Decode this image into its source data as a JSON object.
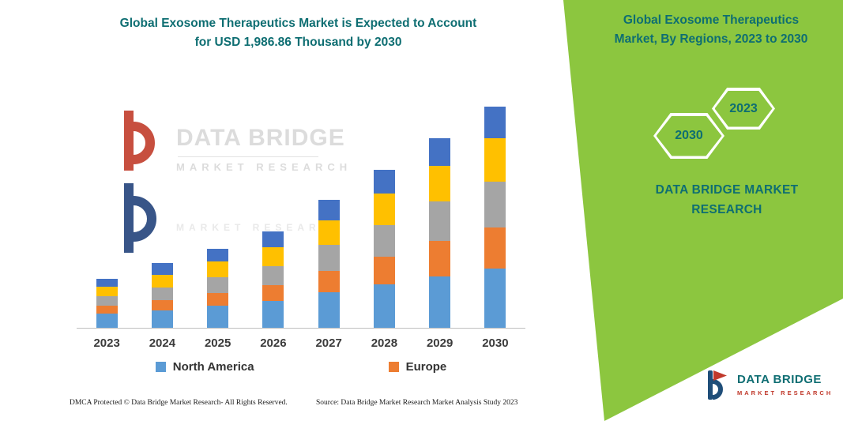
{
  "left_header": {
    "line1": "Global Exosome Therapeutics Market is Expected to Account",
    "line2": "for USD 1,986.86 Thousand by 2030"
  },
  "right_panel": {
    "title_line1": "Global Exosome Therapeutics",
    "title_line2": "Market, By Regions, 2023 to 2030",
    "hexagon_back_year": "2030",
    "hexagon_front_year": "2023",
    "brand_line1": "DATA BRIDGE MARKET",
    "brand_line2": "RESEARCH",
    "bg_color": "#8CC63F",
    "text_color": "#0E6E72"
  },
  "watermark": {
    "brand": "DATA BRIDGE",
    "sub": "MARKET RESEARCH",
    "sub2": "MARKET RESEARCH"
  },
  "chart_data": {
    "type": "bar",
    "stacked": true,
    "title": "Global Exosome Therapeutics Market is Expected to Account for USD 1,986.86 Thousand by 2030",
    "xlabel": "",
    "ylabel": "",
    "y_axis_labels_visible": false,
    "values_unit": "relative height units (y-axis unlabeled in figure)",
    "categories": [
      "2023",
      "2024",
      "2025",
      "2026",
      "2027",
      "2028",
      "2029",
      "2030"
    ],
    "series": [
      {
        "name": "North America",
        "color": "#5B9BD5",
        "values": [
          18,
          22,
          28,
          34,
          45,
          55,
          65,
          75
        ]
      },
      {
        "name": "Europe",
        "color": "#ED7D31",
        "values": [
          10,
          13,
          16,
          20,
          27,
          35,
          45,
          52
        ]
      },
      {
        "name": "(unlabeled gray segment)",
        "color": "#A5A5A5",
        "values": [
          12,
          16,
          20,
          24,
          33,
          40,
          50,
          58
        ]
      },
      {
        "name": "(unlabeled yellow segment)",
        "color": "#FFC000",
        "values": [
          12,
          16,
          20,
          24,
          31,
          40,
          45,
          55
        ]
      },
      {
        "name": "(unlabeled dark blue segment)",
        "color": "#4472C4",
        "values": [
          10,
          15,
          16,
          20,
          26,
          30,
          35,
          40
        ]
      }
    ],
    "legend": [
      {
        "label": "North America",
        "color": "#5B9BD5"
      },
      {
        "label": "Europe",
        "color": "#ED7D31"
      }
    ],
    "legend_position": "bottom"
  },
  "footer": {
    "left": "DMCA Protected © Data Bridge Market Research-  All Rights Reserved.",
    "source": "Source: Data Bridge Market Research  Market Analysis Study 2023"
  },
  "brand_footer": {
    "name": "DATA BRIDGE",
    "sub": "MARKET RESEARCH"
  }
}
